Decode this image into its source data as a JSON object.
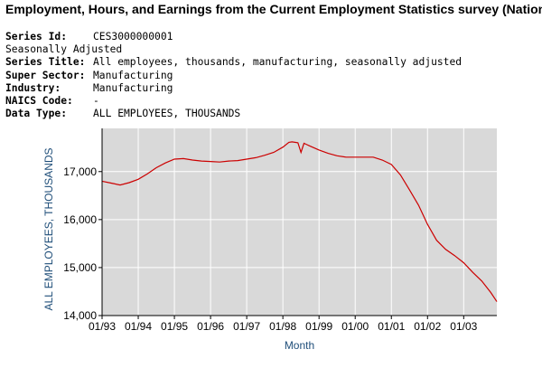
{
  "page": {
    "title": "Employment, Hours, and Earnings from the Current Employment Statistics survey (National)"
  },
  "series_info": {
    "series_id_label": "Series Id:",
    "series_id": "CES3000000001",
    "adjustment": "Seasonally Adjusted",
    "series_title_label": "Series Title:",
    "series_title": "All employees, thousands, manufacturing, seasonally adjusted",
    "super_sector_label": "Super Sector:",
    "super_sector": "Manufacturing",
    "industry_label": "Industry:",
    "industry": "Manufacturing",
    "naics_label": "NAICS Code:",
    "naics": "-",
    "data_type_label": "Data Type:",
    "data_type": "ALL EMPLOYEES, THOUSANDS"
  },
  "chart_data": {
    "type": "line",
    "xlabel": "Month",
    "ylabel": "ALL EMPLOYEES, THOUSANDS",
    "ylim": [
      14000,
      17900
    ],
    "xlim": [
      "1993-01",
      "2003-12"
    ],
    "y_ticks": [
      14000,
      15000,
      16000,
      17000
    ],
    "y_tick_labels": [
      "14,000",
      "15,000",
      "16,000",
      "17,000"
    ],
    "x_tick_labels": [
      "01/93",
      "01/94",
      "01/95",
      "01/96",
      "01/97",
      "01/98",
      "01/99",
      "01/00",
      "01/01",
      "01/02",
      "01/03"
    ],
    "grid": true,
    "colors": {
      "line": "#cc0000",
      "plot_bg": "#d9d9d9",
      "grid": "#ffffff",
      "axis_title": "#1f4e79"
    },
    "series": [
      {
        "x": [
          "1993-01",
          "1993-04",
          "1993-07",
          "1993-10",
          "1994-01",
          "1994-04",
          "1994-07",
          "1994-10",
          "1995-01",
          "1995-04",
          "1995-07",
          "1995-10",
          "1996-01",
          "1996-04",
          "1996-07",
          "1996-10",
          "1997-01",
          "1997-04",
          "1997-07",
          "1997-10",
          "1998-01",
          "1998-03",
          "1998-04",
          "1998-05",
          "1998-06",
          "1998-07",
          "1998-08",
          "1998-09",
          "1998-10",
          "1999-01",
          "1999-04",
          "1999-07",
          "1999-10",
          "2000-01",
          "2000-04",
          "2000-07",
          "2000-10",
          "2001-01",
          "2001-04",
          "2001-07",
          "2001-10",
          "2002-01",
          "2002-04",
          "2002-07",
          "2002-10",
          "2003-01",
          "2003-04",
          "2003-07",
          "2003-10",
          "2003-12"
        ],
        "values": [
          16800,
          16760,
          16720,
          16770,
          16840,
          16950,
          17080,
          17180,
          17260,
          17270,
          17240,
          17220,
          17210,
          17200,
          17220,
          17230,
          17260,
          17290,
          17340,
          17400,
          17510,
          17610,
          17620,
          17610,
          17600,
          17400,
          17590,
          17560,
          17530,
          17450,
          17380,
          17330,
          17300,
          17300,
          17300,
          17300,
          17240,
          17150,
          16930,
          16620,
          16300,
          15900,
          15570,
          15380,
          15250,
          15100,
          14900,
          14720,
          14480,
          14290
        ]
      }
    ]
  }
}
